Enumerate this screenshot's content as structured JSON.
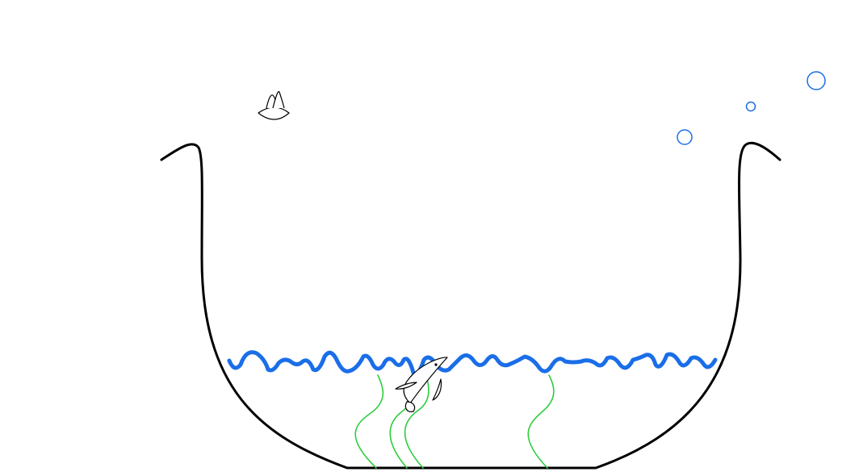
{
  "scene": {
    "bowl_color": "#000000",
    "water_color": "#1a6ee8",
    "seaweed_color": "#2ecc40",
    "bubble_color": "#1a6ee8",
    "fish_color": "#000000",
    "background": "#ffffff",
    "icons": [
      "fish-icon",
      "fish-food-icon",
      "bubble-icon",
      "seaweed-icon"
    ]
  }
}
